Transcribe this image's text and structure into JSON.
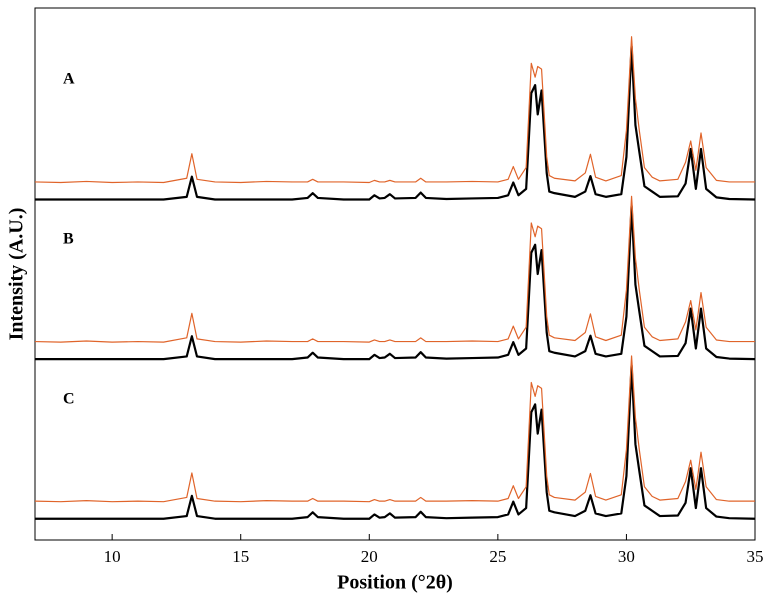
{
  "chart_data": {
    "type": "line",
    "xlabel": "Position (°2θ)",
    "ylabel": "Intensity (A.U.)",
    "annotations": [
      "A",
      "B",
      "C"
    ],
    "xlim": [
      7,
      35
    ],
    "xticks": [
      10,
      15,
      20,
      25,
      30,
      35
    ],
    "ylim": [
      0,
      100
    ],
    "yticks": [],
    "x": [
      7,
      8,
      9,
      10,
      11,
      12,
      12.9,
      13.1,
      13.3,
      14,
      15,
      16,
      17,
      17.6,
      17.8,
      18,
      19,
      20,
      20.2,
      20.4,
      20.6,
      20.8,
      21,
      21.8,
      22,
      22.2,
      23,
      24,
      25,
      25.4,
      25.6,
      25.8,
      26.1,
      26.3,
      26.45,
      26.55,
      26.7,
      26.9,
      27,
      27.2,
      28,
      28.4,
      28.6,
      28.8,
      29.2,
      29.8,
      30,
      30.2,
      30.35,
      30.5,
      30.7,
      31,
      31.3,
      32,
      32.3,
      32.5,
      32.7,
      32.9,
      33.1,
      33.5,
      34,
      35
    ],
    "series": [
      {
        "color": "#000000",
        "values": [
          64,
          64,
          64,
          64,
          64,
          64,
          64.5,
          68.3,
          64.5,
          64,
          64,
          64,
          64,
          64.3,
          65.2,
          64.3,
          64,
          64,
          64.8,
          64.2,
          64.3,
          65,
          64.2,
          64.3,
          65.3,
          64.3,
          64.1,
          64.2,
          64.3,
          64.8,
          67.2,
          64.8,
          66,
          84,
          85.5,
          80,
          84.5,
          69,
          65.5,
          65.2,
          64.5,
          65.5,
          68.4,
          65,
          64.5,
          65,
          72,
          92.8,
          78,
          73,
          66.5,
          65.5,
          64.5,
          64.6,
          67,
          73.5,
          66,
          73.5,
          66,
          64.4,
          64.1,
          64
        ]
      },
      {
        "color": "#e0642a",
        "values": [
          67.3,
          67.2,
          67.4,
          67.2,
          67.3,
          67.2,
          68,
          72.6,
          67.8,
          67.3,
          67.2,
          67.4,
          67.3,
          67.3,
          67.8,
          67.3,
          67.3,
          67.2,
          67.6,
          67.3,
          67.3,
          67.6,
          67.3,
          67.3,
          68,
          67.3,
          67.3,
          67.4,
          67.3,
          67.8,
          70.2,
          67.8,
          70,
          89.6,
          87,
          89,
          88.5,
          72,
          68.5,
          68,
          67.5,
          69,
          72.5,
          68.2,
          67.5,
          68.5,
          77,
          94.6,
          83,
          77,
          70,
          68.2,
          67.5,
          67.8,
          71,
          75,
          69.5,
          76.5,
          70,
          67.6,
          67.3,
          67.3
        ]
      },
      {
        "color": "#000000",
        "values": [
          34,
          34,
          34,
          34,
          34,
          34,
          34.5,
          38.3,
          34.5,
          34,
          34,
          34,
          34,
          34.3,
          35.2,
          34.3,
          34,
          34,
          34.8,
          34.2,
          34.3,
          35,
          34.2,
          34.3,
          35.3,
          34.3,
          34.1,
          34.2,
          34.3,
          34.8,
          37.2,
          34.8,
          36,
          54,
          55.5,
          50,
          54.5,
          39,
          35.5,
          35.2,
          34.5,
          35.5,
          38.4,
          35,
          34.5,
          35,
          42,
          62.8,
          48,
          43,
          36.5,
          35.5,
          34.5,
          34.6,
          37,
          43.5,
          36,
          43.5,
          36,
          34.4,
          34.1,
          34
        ]
      },
      {
        "color": "#e0642a",
        "values": [
          37.3,
          37.2,
          37.4,
          37.2,
          37.3,
          37.2,
          38,
          42.6,
          37.8,
          37.3,
          37.2,
          37.4,
          37.3,
          37.3,
          37.8,
          37.3,
          37.3,
          37.2,
          37.6,
          37.3,
          37.3,
          37.6,
          37.3,
          37.3,
          38,
          37.3,
          37.3,
          37.4,
          37.3,
          37.8,
          40.2,
          37.8,
          40,
          59.6,
          57,
          59,
          58.5,
          42,
          38.5,
          38,
          37.5,
          39,
          42.5,
          38.2,
          37.5,
          38.5,
          47,
          64.6,
          53,
          47,
          40,
          38.2,
          37.5,
          37.8,
          41,
          45,
          39.5,
          46.5,
          40,
          37.6,
          37.3,
          37.3
        ]
      },
      {
        "color": "#000000",
        "values": [
          4,
          4,
          4,
          4,
          4,
          4,
          4.5,
          8.3,
          4.5,
          4,
          4,
          4,
          4,
          4.3,
          5.2,
          4.3,
          4,
          4,
          4.8,
          4.2,
          4.3,
          5,
          4.2,
          4.3,
          5.3,
          4.3,
          4.1,
          4.2,
          4.3,
          4.8,
          7.2,
          4.8,
          6,
          24,
          25.5,
          20,
          24.5,
          9,
          5.5,
          5.2,
          4.5,
          5.5,
          8.4,
          5,
          4.5,
          5,
          12,
          32.8,
          18,
          13,
          6.5,
          5.5,
          4.5,
          4.6,
          7,
          13.5,
          6,
          13.5,
          6,
          4.4,
          4.1,
          4
        ]
      },
      {
        "color": "#e0642a",
        "values": [
          7.3,
          7.2,
          7.4,
          7.2,
          7.3,
          7.2,
          8,
          12.6,
          7.8,
          7.3,
          7.2,
          7.4,
          7.3,
          7.3,
          7.8,
          7.3,
          7.3,
          7.2,
          7.6,
          7.3,
          7.3,
          7.6,
          7.3,
          7.3,
          8,
          7.3,
          7.3,
          7.4,
          7.3,
          7.8,
          10.2,
          7.8,
          10,
          29.6,
          27,
          29,
          28.5,
          12,
          8.5,
          8,
          7.5,
          9,
          12.5,
          8.2,
          7.5,
          8.5,
          17,
          34.6,
          23,
          17,
          10,
          8.2,
          7.5,
          7.8,
          11,
          15,
          9.5,
          16.5,
          10,
          7.6,
          7.3,
          7.3
        ]
      }
    ]
  }
}
